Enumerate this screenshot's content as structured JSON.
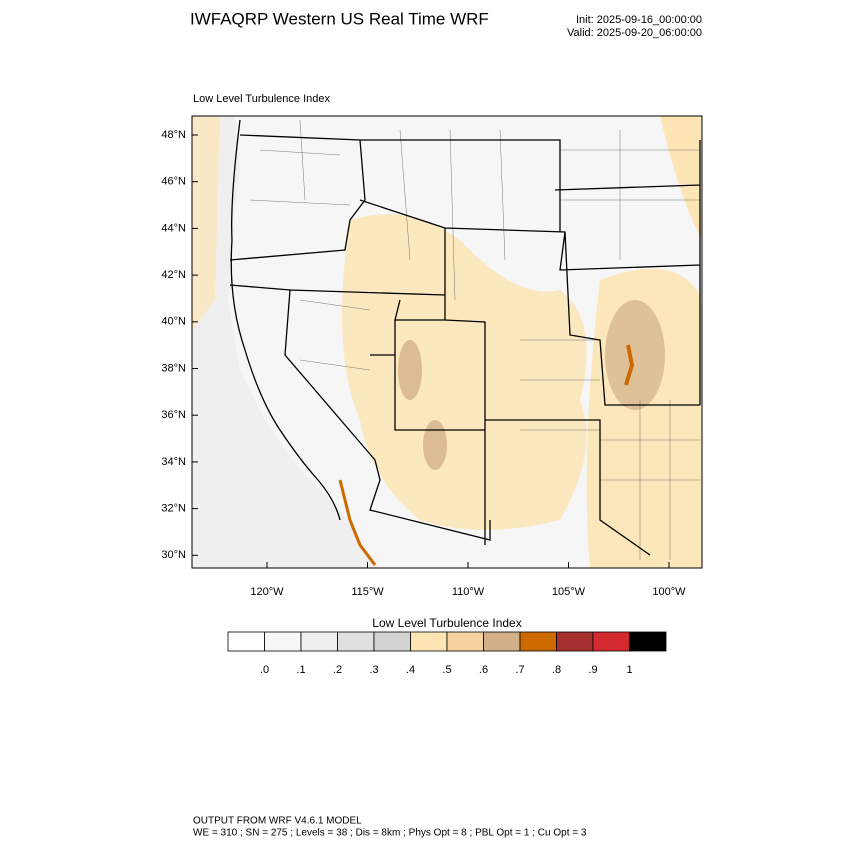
{
  "header": {
    "title": "IWFAQRP Western US Real Time WRF",
    "init": "Init: 2025-09-16_00:00:00",
    "valid": "Valid: 2025-09-20_06:00:00"
  },
  "map": {
    "title": "Low Level Turbulence Index",
    "lat_labels": [
      "48°N",
      "46°N",
      "44°N",
      "42°N",
      "40°N",
      "38°N",
      "36°N",
      "34°N",
      "32°N",
      "30°N"
    ],
    "lon_labels": [
      "120°W",
      "115°W",
      "110°W",
      "105°W",
      "100°W"
    ]
  },
  "colorbar": {
    "title": "Low Level Turbulence Index",
    "colors": [
      "#ffffff",
      "#f7f7f7",
      "#efefef",
      "#e0e0e0",
      "#d3d3d3",
      "#fde5b5",
      "#f6d2a0",
      "#d2b08a",
      "#cc6a00",
      "#a52f2f",
      "#d32a2f",
      "#000000"
    ],
    "labels": [
      ".0",
      ".1",
      ".2",
      ".3",
      ".4",
      ".5",
      ".6",
      ".7",
      ".8",
      ".9",
      "1"
    ]
  },
  "footer": {
    "line1": "OUTPUT FROM WRF V4.6.1 MODEL",
    "line2": "WE = 310 ; SN = 275 ; Levels = 38 ; Dis = 8km ; Phys Opt = 8 ; PBL Opt = 1 ; Cu Opt = 3"
  }
}
